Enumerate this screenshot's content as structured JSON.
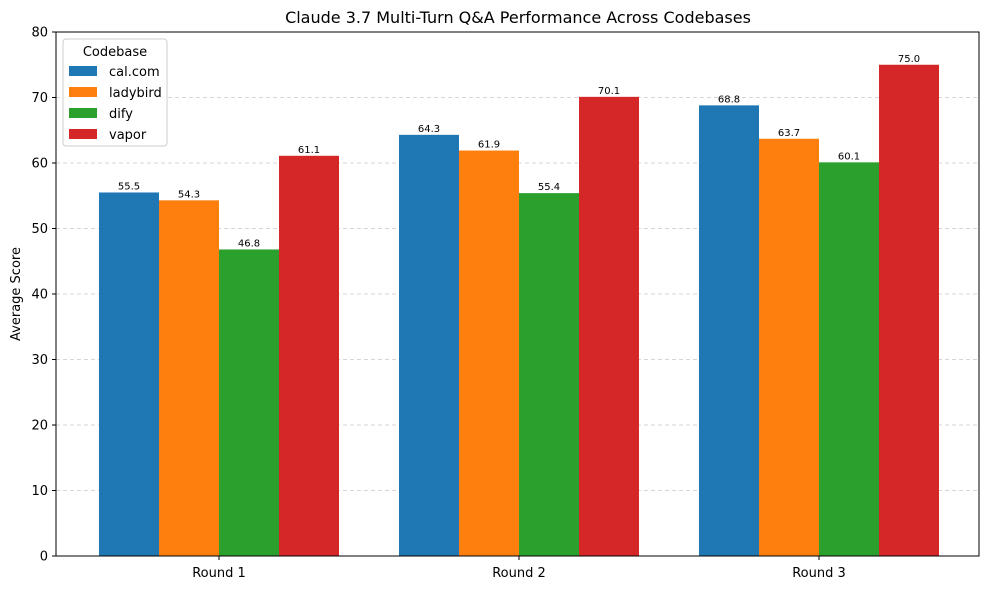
{
  "chart_data": {
    "type": "bar",
    "title": "Claude 3.7 Multi-Turn Q&A Performance Across Codebases",
    "xlabel": "",
    "ylabel": "Average Score",
    "ylim": [
      0,
      80
    ],
    "yticks": [
      0,
      10,
      20,
      30,
      40,
      50,
      60,
      70,
      80
    ],
    "grid": "y-dashed",
    "legend_title": "Codebase",
    "legend_position": "top-left",
    "categories": [
      "Round 1",
      "Round 2",
      "Round 3"
    ],
    "series": [
      {
        "name": "cal.com",
        "color": "#1f77b4",
        "values": [
          55.5,
          64.3,
          68.8
        ],
        "labels": [
          "55.5",
          "64.3",
          "68.8"
        ]
      },
      {
        "name": "ladybird",
        "color": "#ff7f0e",
        "values": [
          54.3,
          61.9,
          63.7
        ],
        "labels": [
          "54.3",
          "61.9",
          "63.7"
        ]
      },
      {
        "name": "dify",
        "color": "#2ca02c",
        "values": [
          46.8,
          55.4,
          60.1
        ],
        "labels": [
          "46.8",
          "55.4",
          "60.1"
        ]
      },
      {
        "name": "vapor",
        "color": "#d62728",
        "values": [
          61.1,
          70.1,
          75.0
        ],
        "labels": [
          "61.1",
          "70.1",
          "75.0"
        ]
      }
    ]
  }
}
